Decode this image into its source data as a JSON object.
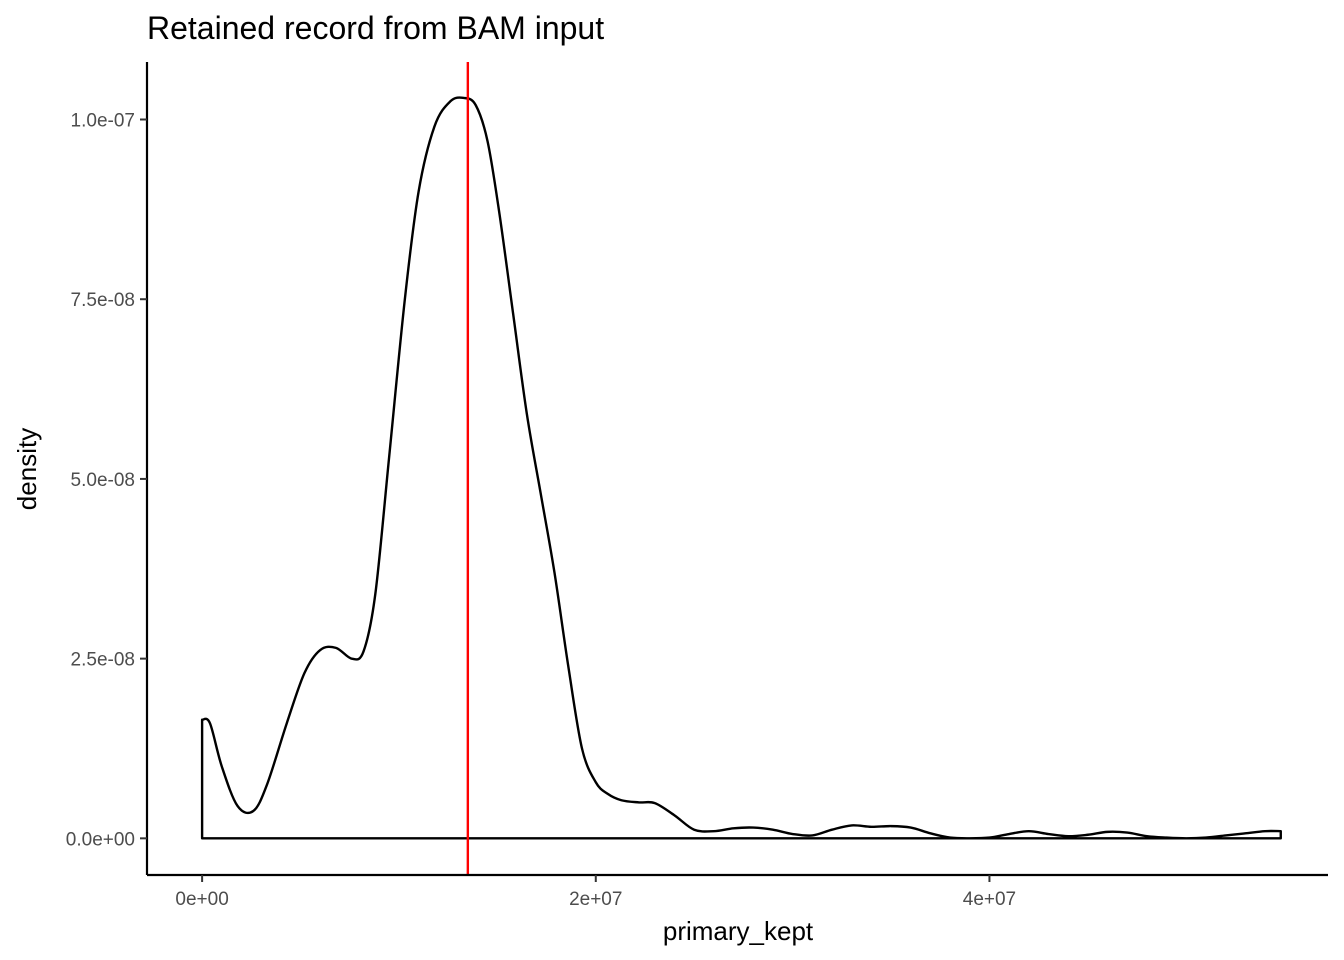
{
  "chart_data": {
    "type": "area",
    "title": "Retained record from BAM input",
    "xlabel": "primary_kept",
    "ylabel": "density",
    "xlim": [
      -2800000,
      57200000
    ],
    "ylim": [
      -5.1e-09,
      1.08e-07
    ],
    "x_ticks": [
      0,
      20000000,
      40000000
    ],
    "x_tick_labels": [
      "0e+00",
      "2e+07",
      "4e+07"
    ],
    "y_ticks": [
      0,
      2.5e-08,
      5e-08,
      7.5e-08,
      1e-07
    ],
    "y_tick_labels": [
      "0.0e+00",
      "2.5e-08",
      "5.0e-08",
      "7.5e-08",
      "1.0e-07"
    ],
    "grid": false,
    "vline": {
      "x": 13500000,
      "color": "#ff0000"
    },
    "line_color": "#000000",
    "series": [
      {
        "x": [
          0,
          400000,
          1000000,
          1800000,
          2600000,
          3300000,
          4300000,
          5200000,
          6000000,
          6800000,
          7600000,
          8200000,
          8800000,
          9500000,
          10300000,
          11000000,
          11800000,
          12600000,
          13300000,
          13900000,
          14500000,
          15100000,
          15800000,
          16500000,
          17200000,
          17900000,
          18600000,
          19300000,
          20000000,
          20600000,
          21300000,
          22200000,
          23000000,
          24000000,
          25000000,
          26000000,
          27000000,
          28000000,
          29000000,
          30000000,
          31000000,
          32000000,
          33000000,
          34000000,
          35000000,
          36000000,
          37000000,
          38000000,
          39000000,
          40000000,
          41000000,
          42000000,
          43000000,
          44000000,
          45000000,
          46000000,
          47000000,
          48000000,
          49000000,
          50000000,
          51000000,
          52000000,
          53000000,
          54000000,
          54800000
        ],
        "y": [
          1.65e-08,
          1.6e-08,
          1e-08,
          4.5e-09,
          3.8e-09,
          7.5e-09,
          1.6e-08,
          2.3e-08,
          2.62e-08,
          2.65e-08,
          2.5e-08,
          2.6e-08,
          3.4e-08,
          5.3e-08,
          7.5e-08,
          9e-08,
          9.9e-08,
          1.025e-07,
          1.03e-07,
          1.02e-07,
          9.7e-08,
          8.7e-08,
          7.3e-08,
          5.9e-08,
          4.8e-08,
          3.7e-08,
          2.4e-08,
          1.25e-08,
          7.8e-09,
          6.2e-09,
          5.3e-09,
          5e-09,
          4.9e-09,
          3.2e-09,
          1.2e-09,
          1e-09,
          1.4e-09,
          1.5e-09,
          1.2e-09,
          6e-10,
          4e-10,
          1.2e-09,
          1.8e-09,
          1.6e-09,
          1.7e-09,
          1.5e-09,
          7e-10,
          1e-10,
          0.0,
          1e-10,
          6e-10,
          1e-09,
          6e-10,
          3e-10,
          5e-10,
          9e-10,
          8e-10,
          3e-10,
          1e-10,
          0.0,
          1e-10,
          4e-10,
          7e-10,
          1e-09,
          1e-09
        ]
      }
    ]
  }
}
